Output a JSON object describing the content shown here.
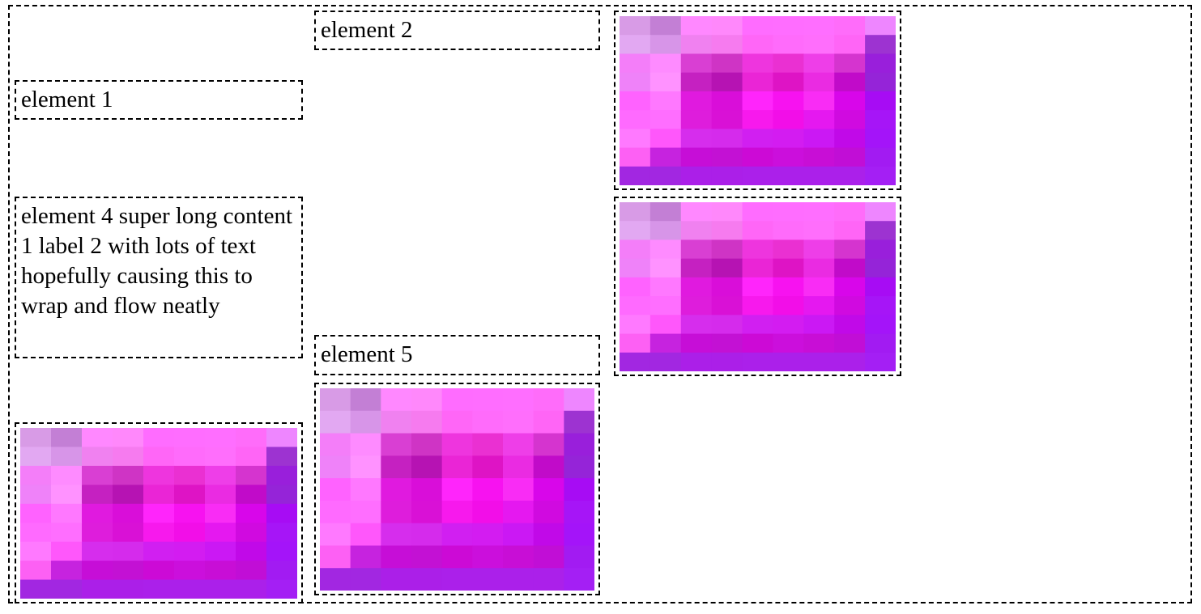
{
  "page": {
    "background": "#ffffff",
    "border_color": "#000000"
  },
  "elements": {
    "element_1": "element 1",
    "element_2": "element 2",
    "element_4": "element 4 super long content 1 label 2 with lots of text hopefully causing this to wrap and flow neatly",
    "element_5": "element 5"
  },
  "images": [
    {
      "name": "pixelated-magenta-image",
      "description_icon": "image-icon"
    },
    {
      "name": "pixelated-magenta-image",
      "description_icon": "image-icon"
    },
    {
      "name": "pixelated-magenta-image",
      "description_icon": "image-icon"
    },
    {
      "name": "pixelated-magenta-image",
      "description_icon": "image-icon"
    }
  ],
  "palette": {
    "grid_rows": [
      [
        "#d89be6",
        "#c37fd5",
        "#ff88ff",
        "#ff88fb",
        "#ff6cff",
        "#ff6dff",
        "#ff6eff",
        "#ff6cfa",
        "#ee86ff"
      ],
      [
        "#e2a8f2",
        "#d795e8",
        "#f081f0",
        "#f67bef",
        "#ff66f7",
        "#ff6bfb",
        "#ff6efc",
        "#ff65f6",
        "#9d33d1"
      ],
      [
        "#f47ef9",
        "#fe8bff",
        "#d93fd3",
        "#cf34c5",
        "#ee35de",
        "#ea30d2",
        "#ee3ee8",
        "#d534cf",
        "#991fdb"
      ],
      [
        "#ef82f9",
        "#ff92ff",
        "#c521c1",
        "#b613b3",
        "#ea25d6",
        "#de14c5",
        "#ea2be2",
        "#c10bc9",
        "#9524d8"
      ],
      [
        "#ff62ff",
        "#ff78ff",
        "#e01adf",
        "#d90ed9",
        "#ff25fb",
        "#f712f0",
        "#f92cf5",
        "#d806ea",
        "#a70cf4"
      ],
      [
        "#ff6aff",
        "#ff6eff",
        "#de1ddc",
        "#d911d6",
        "#f719ed",
        "#f20ee8",
        "#e518f0",
        "#d00ae0",
        "#a615f7"
      ],
      [
        "#ff79ff",
        "#ff57fb",
        "#d62ded",
        "#d52bec",
        "#d11ff1",
        "#d31cf1",
        "#cb18f4",
        "#c109e8",
        "#a414f9"
      ],
      [
        "#fd60f4",
        "#c623df",
        "#c60ed7",
        "#c311d4",
        "#cc0ad6",
        "#cb0fdc",
        "#c80ed6",
        "#c10ed6",
        "#a21bf2"
      ],
      [
        "#a227e1",
        "#a227e1",
        "#ab1fe8",
        "#ab1fe8",
        "#ab20ea",
        "#ab20ea",
        "#ab20ea",
        "#ab20ea",
        "#a41ff4"
      ]
    ]
  }
}
